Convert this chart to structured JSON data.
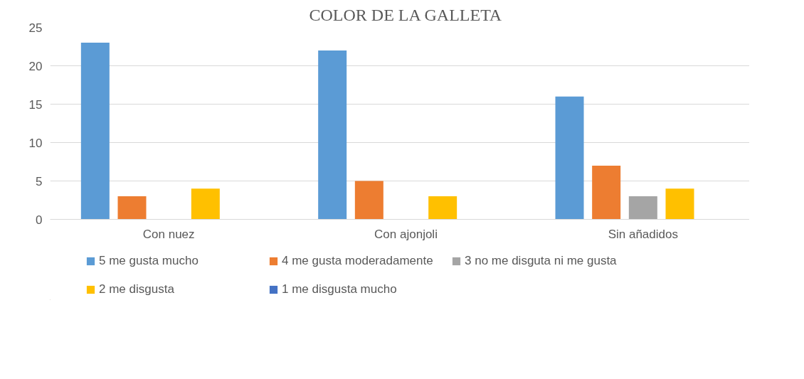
{
  "chart_data": {
    "type": "bar",
    "title": "COLOR DE LA GALLETA",
    "categories": [
      "Con nuez",
      "Con ajonjoli",
      "Sin añadidos"
    ],
    "series": [
      {
        "name": "5 me gusta mucho",
        "color": "#5b9bd5",
        "values": [
          23,
          22,
          16
        ]
      },
      {
        "name": "4 me gusta moderadamente",
        "color": "#ed7d31",
        "values": [
          3,
          5,
          7
        ]
      },
      {
        "name": "3 no me disguta ni me gusta",
        "color": "#a5a5a5",
        "values": [
          0,
          0,
          3
        ]
      },
      {
        "name": "2 me disgusta",
        "color": "#ffc000",
        "values": [
          4,
          3,
          4
        ]
      },
      {
        "name": "1 me disgusta mucho",
        "color": "#4472c4",
        "values": [
          0,
          0,
          0
        ]
      }
    ],
    "ylim": [
      0,
      25
    ],
    "yticks": [
      0,
      5,
      10,
      15,
      20,
      25
    ],
    "grid": "y",
    "legend": "bottom"
  }
}
